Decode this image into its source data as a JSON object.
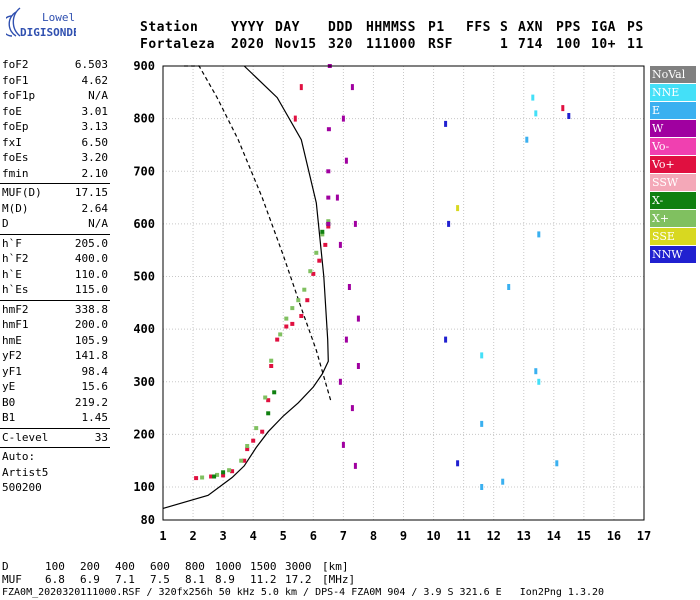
{
  "brand": {
    "top": "Lowell",
    "bottom": "DIGISONDE"
  },
  "header": {
    "labels": [
      "Station",
      "YYYY",
      "DAY",
      "DDD",
      "HHMMSS",
      "P1",
      "FFS",
      "S",
      "AXN",
      "PPS",
      "IGA",
      "PS"
    ],
    "values": [
      "Fortaleza",
      "2020",
      "Nov15",
      "320",
      "111000",
      "RSF",
      "1",
      "714",
      "100",
      "10+",
      "11"
    ]
  },
  "params": {
    "g1": [
      {
        "name": "foF2",
        "value": "6.503"
      },
      {
        "name": "foF1",
        "value": "4.62"
      },
      {
        "name": "foF1p",
        "value": "N/A"
      },
      {
        "name": "foE",
        "value": "3.01"
      },
      {
        "name": "foEp",
        "value": "3.13"
      },
      {
        "name": "fxI",
        "value": "6.50"
      },
      {
        "name": "foEs",
        "value": "3.20"
      },
      {
        "name": "fmin",
        "value": "2.10"
      }
    ],
    "g2": [
      {
        "name": "MUF(D)",
        "value": "17.15"
      },
      {
        "name": "M(D)",
        "value": "2.64"
      },
      {
        "name": "D",
        "value": "N/A"
      }
    ],
    "g3": [
      {
        "name": "h`F",
        "value": "205.0"
      },
      {
        "name": "h`F2",
        "value": "400.0"
      },
      {
        "name": "h`E",
        "value": "110.0"
      },
      {
        "name": "h`Es",
        "value": "115.0"
      }
    ],
    "g4": [
      {
        "name": "hmF2",
        "value": "338.8"
      },
      {
        "name": "hmF1",
        "value": "200.0"
      },
      {
        "name": "hmE",
        "value": "105.9"
      },
      {
        "name": "yF2",
        "value": "141.8"
      },
      {
        "name": "yF1",
        "value": "98.4"
      },
      {
        "name": "yE",
        "value": "15.6"
      },
      {
        "name": "B0",
        "value": "219.2"
      },
      {
        "name": "B1",
        "value": "1.45"
      }
    ],
    "g5": [
      {
        "name": "C-level",
        "value": "33"
      }
    ],
    "auto_label": "Auto:",
    "auto_name": "Artist5",
    "auto_code": "500200"
  },
  "legend": [
    {
      "label": "NoVal",
      "color": "#808080"
    },
    {
      "label": "NNE",
      "color": "#44e0f8"
    },
    {
      "label": "E",
      "color": "#3ab0f0"
    },
    {
      "label": "W",
      "color": "#a000a0"
    },
    {
      "label": "Vo-",
      "color": "#f040b0"
    },
    {
      "label": "Vo+",
      "color": "#e01040"
    },
    {
      "label": "SSW",
      "color": "#f4a8b8"
    },
    {
      "label": "X-",
      "color": "#108010"
    },
    {
      "label": "X+",
      "color": "#80c060"
    },
    {
      "label": "SSE",
      "color": "#d8d820"
    },
    {
      "label": "NNW",
      "color": "#2020d0"
    }
  ],
  "footer": {
    "d_label": "D",
    "d_values": [
      "100",
      "200",
      "400",
      "600",
      "800",
      "1000",
      "1500",
      "3000"
    ],
    "d_unit": "[km]",
    "muf_label": "MUF",
    "muf_values": [
      "6.8",
      "6.9",
      "7.1",
      "7.5",
      "8.1",
      "8.9",
      "11.2",
      "17.2"
    ],
    "muf_unit": "[MHz]",
    "info": "FZA0M_2020320111000.RSF / 320fx256h 50 kHz 5.0 km / DPS-4 FZA0M 904 / 3.9 S 321.6 E   Ion2Png 1.3.20"
  },
  "chart_data": {
    "type": "scatter",
    "xlim": [
      1,
      17
    ],
    "ylim": [
      80,
      900
    ],
    "x_ticks": [
      1,
      2,
      3,
      4,
      5,
      6,
      7,
      8,
      9,
      10,
      11,
      12,
      13,
      14,
      15,
      16,
      17
    ],
    "y_ticks": [
      80,
      100,
      200,
      300,
      400,
      500,
      600,
      700,
      800,
      900
    ],
    "grid": true,
    "series": [
      {
        "mode": "trace",
        "color": "#e01040",
        "points": [
          [
            2.1,
            117
          ],
          [
            2.6,
            120
          ],
          [
            3.0,
            122
          ],
          [
            3.3,
            130
          ],
          [
            3.7,
            150
          ],
          [
            3.8,
            172
          ],
          [
            4.0,
            188
          ],
          [
            4.3,
            205
          ],
          [
            4.5,
            265
          ],
          [
            4.6,
            330
          ],
          [
            4.8,
            380
          ],
          [
            5.1,
            405
          ],
          [
            5.3,
            410
          ],
          [
            5.6,
            425
          ],
          [
            5.8,
            455
          ],
          [
            6.0,
            505
          ],
          [
            6.2,
            530
          ],
          [
            6.4,
            560
          ],
          [
            6.5,
            595
          ]
        ]
      },
      {
        "mode": "trace",
        "color": "#80c060",
        "points": [
          [
            2.3,
            118
          ],
          [
            2.8,
            123
          ],
          [
            3.2,
            132
          ],
          [
            3.6,
            150
          ],
          [
            3.8,
            178
          ],
          [
            4.1,
            212
          ],
          [
            4.4,
            270
          ],
          [
            4.6,
            340
          ],
          [
            4.9,
            390
          ],
          [
            5.1,
            420
          ],
          [
            5.3,
            440
          ],
          [
            5.5,
            455
          ],
          [
            5.7,
            475
          ],
          [
            5.9,
            510
          ],
          [
            6.1,
            545
          ],
          [
            6.3,
            580
          ],
          [
            6.5,
            605
          ]
        ]
      },
      {
        "mode": "trace",
        "color": "#108010",
        "points": [
          [
            2.7,
            120
          ],
          [
            3.0,
            128
          ],
          [
            4.5,
            240
          ],
          [
            4.7,
            280
          ],
          [
            6.3,
            585
          ],
          [
            6.5,
            600
          ]
        ]
      },
      {
        "mode": "trace",
        "color": "#a000a0",
        "points": [
          [
            6.5,
            600
          ],
          [
            6.5,
            650
          ],
          [
            6.5,
            700
          ],
          [
            6.52,
            780
          ],
          [
            6.55,
            900
          ]
        ]
      },
      {
        "mode": "scatter",
        "color": "#a000a0",
        "points": [
          [
            6.8,
            650
          ],
          [
            6.9,
            560
          ],
          [
            7.0,
            800
          ],
          [
            7.1,
            720
          ],
          [
            7.2,
            480
          ],
          [
            7.3,
            860
          ],
          [
            7.4,
            600
          ],
          [
            7.5,
            420
          ],
          [
            6.9,
            300
          ],
          [
            7.1,
            380
          ],
          [
            7.3,
            250
          ],
          [
            7.5,
            330
          ],
          [
            7.0,
            180
          ],
          [
            7.4,
            140
          ]
        ]
      },
      {
        "mode": "scatter",
        "color": "#3ab0f0",
        "points": [
          [
            11.6,
            220
          ],
          [
            12.5,
            480
          ],
          [
            13.1,
            760
          ],
          [
            13.5,
            580
          ],
          [
            13.4,
            320
          ],
          [
            14.1,
            145
          ],
          [
            12.3,
            110
          ],
          [
            11.6,
            100
          ]
        ]
      },
      {
        "mode": "scatter",
        "color": "#44e0f8",
        "points": [
          [
            13.3,
            840
          ],
          [
            13.4,
            810
          ],
          [
            11.6,
            350
          ],
          [
            13.5,
            300
          ]
        ]
      },
      {
        "mode": "scatter",
        "color": "#2020d0",
        "points": [
          [
            10.4,
            790
          ],
          [
            10.4,
            380
          ],
          [
            10.5,
            600
          ],
          [
            10.8,
            145
          ],
          [
            14.5,
            805
          ]
        ]
      },
      {
        "mode": "scatter",
        "color": "#e01040",
        "points": [
          [
            14.3,
            820
          ],
          [
            5.4,
            800
          ],
          [
            5.6,
            860
          ]
        ]
      },
      {
        "mode": "scatter",
        "color": "#d8d820",
        "points": [
          [
            10.8,
            630
          ]
        ]
      }
    ],
    "curves": [
      {
        "name": "profile",
        "style": "solid",
        "points": [
          [
            1,
            87
          ],
          [
            2.5,
            95
          ],
          [
            3.3,
            118
          ],
          [
            3.7,
            140
          ],
          [
            4.1,
            175
          ],
          [
            4.5,
            205
          ],
          [
            5.0,
            235
          ],
          [
            5.5,
            260
          ],
          [
            6.0,
            290
          ],
          [
            6.3,
            315
          ],
          [
            6.5,
            339
          ],
          [
            6.48,
            380
          ],
          [
            6.35,
            500
          ],
          [
            6.1,
            640
          ],
          [
            5.6,
            760
          ],
          [
            4.8,
            840
          ],
          [
            3.7,
            900
          ]
        ]
      },
      {
        "name": "muf",
        "style": "dashed",
        "points": [
          [
            1.7,
            900
          ],
          [
            2.2,
            900
          ],
          [
            2.8,
            840
          ],
          [
            3.5,
            760
          ],
          [
            4.3,
            650
          ],
          [
            5.0,
            540
          ],
          [
            5.6,
            440
          ],
          [
            6.1,
            360
          ],
          [
            6.4,
            300
          ],
          [
            6.6,
            260
          ]
        ]
      }
    ]
  }
}
